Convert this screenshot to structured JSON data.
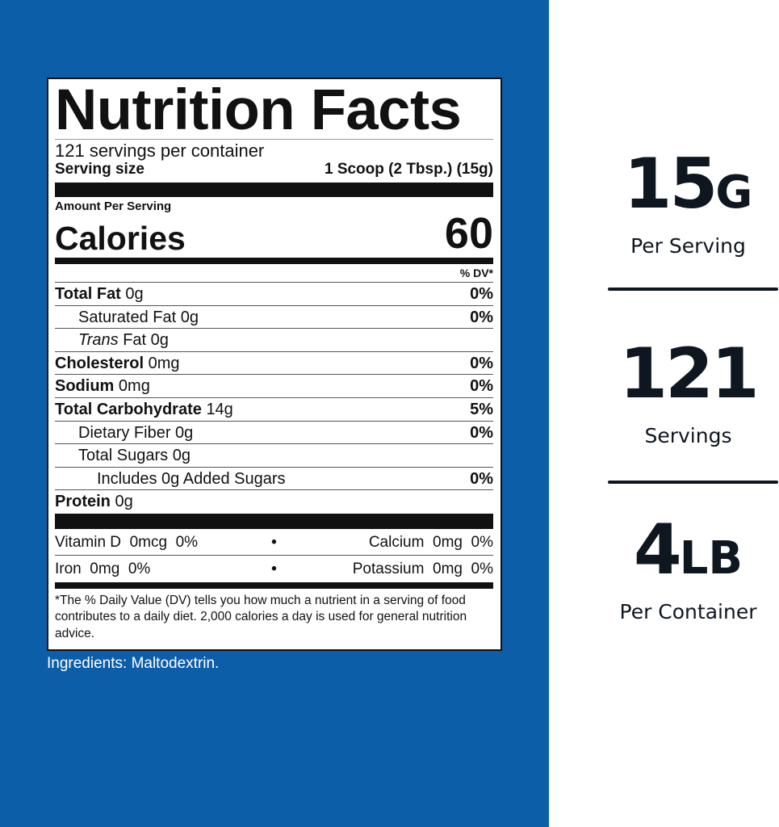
{
  "label": {
    "title": "Nutrition Facts",
    "servings_per_container": "121 servings per container",
    "serving_size_label": "Serving size",
    "serving_size_value": "1 Scoop (2 Tbsp.) (15g)",
    "amount_per_serving": "Amount Per Serving",
    "calories_label": "Calories",
    "calories_value": "60",
    "dv_header": "% DV*",
    "nutrients": [
      {
        "name": "Total Fat",
        "amount": "0g",
        "dv": "0%"
      },
      {
        "name": "Saturated Fat",
        "amount": "0g",
        "dv": "0%"
      },
      {
        "name": "Trans",
        "name_suffix": "Fat",
        "amount": "0g",
        "dv": ""
      },
      {
        "name": "Cholesterol",
        "amount": "0mg",
        "dv": "0%"
      },
      {
        "name": "Sodium",
        "amount": "0mg",
        "dv": "0%"
      },
      {
        "name": "Total Carbohydrate",
        "amount": "14g",
        "dv": "5%"
      },
      {
        "name": "Dietary Fiber",
        "amount": "0g",
        "dv": "0%"
      },
      {
        "name": "Total Sugars",
        "amount": "0g",
        "dv": ""
      },
      {
        "name": "Includes 0g Added Sugars",
        "amount": "",
        "dv": "0%"
      },
      {
        "name": "Protein",
        "amount": "0g",
        "dv": ""
      }
    ],
    "micros": [
      {
        "left": "Vitamin D  0mcg  0%",
        "right": "Calcium  0mg  0%"
      },
      {
        "left": "Iron  0mg  0%",
        "right": "Potassium  0mg  0%"
      }
    ],
    "separator": "•",
    "footnote": "*The % Daily Value (DV) tells you how much a nutrient in a serving of food contributes to a daily diet. 2,000 calories a day is used for general nutrition advice."
  },
  "ingredients": "Ingredients: Maltodextrin.",
  "stats": [
    {
      "number": "15",
      "unit": "G",
      "caption": "Per Serving"
    },
    {
      "number": "121",
      "unit": "",
      "caption": "Servings"
    },
    {
      "number": "4",
      "unit": "LB",
      "caption": "Per Container"
    }
  ],
  "colors": {
    "background_blue": "#0d5ea9",
    "text_dark": "#0e1620"
  }
}
